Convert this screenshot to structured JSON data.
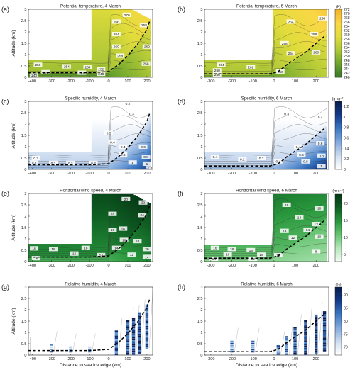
{
  "chart_data": [
    {
      "panel": "(a)",
      "title": "Potential temperature, 4 March",
      "type": "heatmap",
      "xlim": [
        -420,
        230
      ],
      "ylim": [
        0,
        3
      ],
      "x_ticks": [
        "-400",
        "-300",
        "-200",
        "-100",
        "0",
        "100",
        "200"
      ],
      "y_ticks": [
        "0",
        "0.5",
        "1",
        "1.5",
        "2",
        "2.5",
        "3"
      ],
      "ylabel": "Altitude (km)",
      "xlabel": "",
      "colormap": "yellow-green",
      "cbar_unit": "",
      "contour_labels": [
        {
          "x": 95,
          "y": 2.75,
          "text": "270"
        },
        {
          "x": 40,
          "y": 2.45,
          "text": "266"
        },
        {
          "x": 40,
          "y": 1.9,
          "text": "264"
        },
        {
          "x": 40,
          "y": 1.35,
          "text": "260"
        },
        {
          "x": 60,
          "y": 0.95,
          "text": "258"
        },
        {
          "x": 185,
          "y": 2.3,
          "text": "258"
        },
        {
          "x": 200,
          "y": 1.35,
          "text": "262"
        },
        {
          "x": 195,
          "y": 0.6,
          "text": "258"
        },
        {
          "x": -370,
          "y": 0.55,
          "text": "256"
        },
        {
          "x": -220,
          "y": 0.48,
          "text": "254"
        },
        {
          "x": -110,
          "y": 0.45,
          "text": "254"
        },
        {
          "x": -40,
          "y": 0.35,
          "text": "252"
        },
        {
          "x": -330,
          "y": 0.22,
          "text": "250"
        },
        {
          "x": -140,
          "y": 0.2,
          "text": "248"
        },
        {
          "x": -40,
          "y": 0.15,
          "text": "246"
        },
        {
          "x": -390,
          "y": 0.08,
          "text": "240"
        }
      ],
      "boundary_layer": {
        "x": [
          -420,
          -100,
          0,
          50,
          100,
          150,
          200,
          215
        ],
        "y": [
          0.2,
          0.2,
          0.25,
          0.55,
          0.95,
          1.45,
          2.1,
          2.5
        ]
      }
    },
    {
      "panel": "(b)",
      "title": "Potential temperature, 6 March",
      "type": "heatmap",
      "xlim": [
        -330,
        260
      ],
      "ylim": [
        0,
        3
      ],
      "x_ticks": [
        "-300",
        "-200",
        "-100",
        "0",
        "100",
        "200"
      ],
      "y_ticks": [
        "0",
        "0.5",
        "1",
        "1.5",
        "2",
        "2.5",
        "3"
      ],
      "ylabel": "",
      "xlabel": "",
      "colormap": "yellow-green",
      "cbar_unit": "(K)",
      "cbar_ticks": [
        "240",
        "242",
        "244",
        "246",
        "248",
        "250",
        "252",
        "254",
        "256",
        "258",
        "260",
        "262",
        "264",
        "266",
        "268",
        "270",
        "272"
      ],
      "cbar_range": [
        240,
        272
      ],
      "contour_labels": [
        {
          "x": 80,
          "y": 2.45,
          "text": "264"
        },
        {
          "x": 50,
          "y": 1.5,
          "text": "258"
        },
        {
          "x": 80,
          "y": 1.05,
          "text": "254"
        },
        {
          "x": 190,
          "y": 1.9,
          "text": "258"
        },
        {
          "x": 200,
          "y": 1.1,
          "text": "260"
        },
        {
          "x": 230,
          "y": 2.6,
          "text": "268"
        },
        {
          "x": -250,
          "y": 0.55,
          "text": "264"
        },
        {
          "x": -110,
          "y": 0.45,
          "text": "262"
        },
        {
          "x": -270,
          "y": 0.3,
          "text": "260"
        },
        {
          "x": -270,
          "y": 0.12,
          "text": "250"
        },
        {
          "x": 30,
          "y": 0.25,
          "text": "250"
        }
      ],
      "boundary_layer": {
        "x": [
          -330,
          -20,
          20,
          60,
          100,
          150,
          200,
          245
        ],
        "y": [
          0.15,
          0.15,
          0.25,
          0.55,
          0.8,
          1.1,
          1.5,
          1.85
        ]
      }
    },
    {
      "panel": "(c)",
      "title": "Specific humidity, 4 March",
      "type": "heatmap",
      "xlim": [
        -420,
        230
      ],
      "ylim": [
        0,
        3
      ],
      "x_ticks": [
        "-400",
        "-300",
        "-200",
        "-100",
        "0",
        "100",
        "200"
      ],
      "y_ticks": [
        "0",
        "0.5",
        "1",
        "1.5",
        "2",
        "2.5",
        "3"
      ],
      "ylabel": "Altitude (km)",
      "xlabel": "",
      "colormap": "blues",
      "cbar_unit": "",
      "contour_labels": [
        {
          "x": 100,
          "y": 2.9,
          "text": "0.2"
        },
        {
          "x": 120,
          "y": 2.45,
          "text": "0.3"
        },
        {
          "x": -380,
          "y": 0.5,
          "text": "0.2"
        },
        {
          "x": -390,
          "y": 0.3,
          "text": "0.2"
        },
        {
          "x": -290,
          "y": 0.28,
          "text": "0.3"
        },
        {
          "x": -200,
          "y": 0.28,
          "text": "0.2"
        },
        {
          "x": -80,
          "y": 0.28,
          "text": "0.2"
        },
        {
          "x": 0,
          "y": 1.6,
          "text": "0.5"
        },
        {
          "x": 20,
          "y": 1.2,
          "text": "0.4"
        },
        {
          "x": 75,
          "y": 1.0,
          "text": "0.4"
        },
        {
          "x": 75,
          "y": 0.65,
          "text": "0.6"
        },
        {
          "x": 180,
          "y": 1.0,
          "text": "0.6"
        },
        {
          "x": 195,
          "y": 0.55,
          "text": "0.8"
        },
        {
          "x": 200,
          "y": 0.25,
          "text": "1"
        },
        {
          "x": 125,
          "y": 0.3,
          "text": "1"
        },
        {
          "x": 215,
          "y": 0.05,
          "text": "1.2"
        }
      ],
      "boundary_layer": {
        "x": [
          -420,
          -100,
          0,
          50,
          100,
          150,
          200,
          215
        ],
        "y": [
          0.2,
          0.2,
          0.25,
          0.55,
          0.95,
          1.45,
          2.1,
          2.5
        ]
      }
    },
    {
      "panel": "(d)",
      "title": "Specific humidity, 6 March",
      "type": "heatmap",
      "xlim": [
        -330,
        260
      ],
      "ylim": [
        0,
        3
      ],
      "x_ticks": [
        "-300",
        "-200",
        "-100",
        "0",
        "100",
        "200"
      ],
      "y_ticks": [
        "0",
        "0.5",
        "1",
        "1.5",
        "2",
        "2.5",
        "3"
      ],
      "ylabel": "",
      "xlabel": "",
      "colormap": "blues",
      "cbar_unit": "(g kg⁻¹)",
      "cbar_ticks": [
        "0",
        "0.2",
        "0.4",
        "0.6",
        "0.8",
        "1",
        "1.2"
      ],
      "cbar_range": [
        0,
        1.3
      ],
      "contour_labels": [
        {
          "x": 60,
          "y": 2.45,
          "text": "0.3"
        },
        {
          "x": 220,
          "y": 2.3,
          "text": "0.4"
        },
        {
          "x": -280,
          "y": 0.55,
          "text": "0.4"
        },
        {
          "x": -150,
          "y": 0.45,
          "text": "0.2"
        },
        {
          "x": -60,
          "y": 0.5,
          "text": "0.2"
        },
        {
          "x": 20,
          "y": 0.35,
          "text": "0.4"
        },
        {
          "x": 115,
          "y": 1.0,
          "text": "0.4"
        },
        {
          "x": 130,
          "y": 0.65,
          "text": "0.6"
        },
        {
          "x": 220,
          "y": 1.15,
          "text": "0.6"
        },
        {
          "x": 150,
          "y": 0.35,
          "text": "0.8"
        },
        {
          "x": 225,
          "y": 0.6,
          "text": "0.8"
        },
        {
          "x": 225,
          "y": 0.15,
          "text": "1"
        }
      ],
      "boundary_layer": {
        "x": [
          -330,
          -20,
          20,
          60,
          100,
          150,
          200,
          245
        ],
        "y": [
          0.15,
          0.15,
          0.25,
          0.55,
          0.8,
          1.1,
          1.5,
          1.85
        ]
      }
    },
    {
      "panel": "(e)",
      "title": "Horizontal wind speed, 4 March",
      "type": "heatmap",
      "xlim": [
        -420,
        230
      ],
      "ylim": [
        0,
        3
      ],
      "x_ticks": [
        "-400",
        "-300",
        "-200",
        "-100",
        "0",
        "100",
        "200"
      ],
      "y_ticks": [
        "0",
        "0.5",
        "1",
        "1.5",
        "2",
        "2.5",
        "3"
      ],
      "ylabel": "Altitude (km)",
      "xlabel": "",
      "colormap": "greens",
      "cbar_unit": "",
      "contour_labels": [
        {
          "x": 90,
          "y": 2.75,
          "text": "20"
        },
        {
          "x": 180,
          "y": 2.6,
          "text": "22"
        },
        {
          "x": 175,
          "y": 2.05,
          "text": "24"
        },
        {
          "x": 20,
          "y": 2.1,
          "text": "18"
        },
        {
          "x": 20,
          "y": 1.4,
          "text": "18"
        },
        {
          "x": 75,
          "y": 1.45,
          "text": "16"
        },
        {
          "x": 80,
          "y": 0.95,
          "text": "16"
        },
        {
          "x": 150,
          "y": 0.9,
          "text": "18"
        },
        {
          "x": 40,
          "y": 0.6,
          "text": "14"
        },
        {
          "x": 200,
          "y": 0.55,
          "text": "20"
        },
        {
          "x": -390,
          "y": 0.58,
          "text": "16"
        },
        {
          "x": -290,
          "y": 0.55,
          "text": "18"
        },
        {
          "x": -120,
          "y": 0.6,
          "text": "18"
        },
        {
          "x": -180,
          "y": 0.35,
          "text": "16"
        },
        {
          "x": -380,
          "y": 0.15,
          "text": "16"
        },
        {
          "x": -40,
          "y": 0.28,
          "text": "14"
        },
        {
          "x": 120,
          "y": 0.3,
          "text": "12"
        },
        {
          "x": 200,
          "y": 0.2,
          "text": "14"
        }
      ],
      "boundary_layer": {
        "x": [
          -420,
          -100,
          0,
          50,
          100,
          150,
          200,
          215
        ],
        "y": [
          0.2,
          0.2,
          0.25,
          0.55,
          0.95,
          1.45,
          2.1,
          2.5
        ]
      }
    },
    {
      "panel": "(f)",
      "title": "Horizontal wind speed, 6 March",
      "type": "heatmap",
      "xlim": [
        -330,
        260
      ],
      "ylim": [
        0,
        3
      ],
      "x_ticks": [
        "-300",
        "-200",
        "-100",
        "0",
        "100",
        "200"
      ],
      "y_ticks": [
        "0",
        "0.5",
        "1",
        "1.5",
        "2",
        "2.5",
        "3"
      ],
      "ylabel": "",
      "xlabel": "",
      "colormap": "greens",
      "cbar_unit": "(m s⁻¹)",
      "cbar_ticks": [
        "5",
        "10",
        "15",
        "20"
      ],
      "cbar_range": [
        3,
        23
      ],
      "contour_labels": [
        {
          "x": 60,
          "y": 2.5,
          "text": "16"
        },
        {
          "x": 120,
          "y": 1.95,
          "text": "14"
        },
        {
          "x": 50,
          "y": 1.35,
          "text": "14"
        },
        {
          "x": 90,
          "y": 1.05,
          "text": "12"
        },
        {
          "x": 215,
          "y": 2.35,
          "text": "10"
        },
        {
          "x": 200,
          "y": 1.65,
          "text": "12"
        },
        {
          "x": 160,
          "y": 1.4,
          "text": "14"
        },
        {
          "x": 215,
          "y": 1.1,
          "text": "10"
        },
        {
          "x": 200,
          "y": 0.45,
          "text": "8"
        },
        {
          "x": -280,
          "y": 0.6,
          "text": "16"
        },
        {
          "x": -200,
          "y": 0.55,
          "text": "18"
        },
        {
          "x": -110,
          "y": 0.5,
          "text": "18"
        },
        {
          "x": -220,
          "y": 0.32,
          "text": "16"
        },
        {
          "x": -60,
          "y": 0.3,
          "text": "18"
        },
        {
          "x": -285,
          "y": 0.12,
          "text": "14"
        },
        {
          "x": -100,
          "y": 0.12,
          "text": "12"
        },
        {
          "x": 20,
          "y": 0.28,
          "text": "12"
        }
      ],
      "boundary_layer": {
        "x": [
          -330,
          -20,
          20,
          60,
          100,
          150,
          200,
          245
        ],
        "y": [
          0.15,
          0.15,
          0.25,
          0.55,
          0.8,
          1.1,
          1.5,
          1.85
        ]
      }
    },
    {
      "panel": "(g)",
      "title": "Relative humidity, 4 March",
      "type": "scatter",
      "xlim": [
        -420,
        230
      ],
      "ylim": [
        0,
        3
      ],
      "x_ticks": [
        "-400",
        "-300",
        "-200",
        "-100",
        "0",
        "100",
        "200"
      ],
      "y_ticks": [
        "0",
        "0.5",
        "1",
        "1.5",
        "2",
        "2.5",
        "3"
      ],
      "ylabel": "Altitude (km)",
      "xlabel": "Distance to sea ice edge (km)",
      "colormap": "blues",
      "cbar_unit": "",
      "profiles": [
        {
          "x": -300,
          "ymin": 0.15,
          "ymax": 0.45,
          "rh": 0.45
        },
        {
          "x": -200,
          "ymin": 0.15,
          "ymax": 0.35,
          "rh": 0.3
        },
        {
          "x": -100,
          "ymin": 0.15,
          "ymax": 0.35,
          "rh": 0.35
        },
        {
          "x": 40,
          "ymin": 0.0,
          "ymax": 1.05,
          "rh": 0.7
        },
        {
          "x": 100,
          "ymin": 0.0,
          "ymax": 1.5,
          "rh": 0.75
        },
        {
          "x": 130,
          "ymin": 0.0,
          "ymax": 1.6,
          "rh": 0.8
        },
        {
          "x": 160,
          "ymin": 0.1,
          "ymax": 1.85,
          "rh": 0.82
        },
        {
          "x": 200,
          "ymin": 0.3,
          "ymax": 2.2,
          "rh": 0.7
        }
      ],
      "boundary_layer": {
        "x": [
          -420,
          -100,
          0,
          50,
          100,
          150,
          200,
          215
        ],
        "y": [
          0.2,
          0.2,
          0.25,
          0.55,
          0.95,
          1.45,
          2.1,
          2.5
        ]
      }
    },
    {
      "panel": "(h)",
      "title": "Relative humidity, 6 March",
      "type": "scatter",
      "xlim": [
        -330,
        260
      ],
      "ylim": [
        0,
        3
      ],
      "x_ticks": [
        "-300",
        "-200",
        "-100",
        "0",
        "100",
        "200"
      ],
      "y_ticks": [
        "0",
        "0.5",
        "1",
        "1.5",
        "2",
        "2.5",
        "3"
      ],
      "ylabel": "",
      "xlabel": "Distance to sea ice edge (km)",
      "colormap": "blues",
      "cbar_unit": "(%)",
      "cbar_ticks": [
        "70",
        "75",
        "80",
        "85",
        "90"
      ],
      "cbar_range": [
        67,
        93
      ],
      "profiles": [
        {
          "x": -200,
          "ymin": 0.15,
          "ymax": 0.6,
          "rh": 0.5
        },
        {
          "x": -100,
          "ymin": 0.15,
          "ymax": 0.6,
          "rh": 0.55
        },
        {
          "x": 20,
          "ymin": 0.05,
          "ymax": 0.4,
          "rh": 0.5
        },
        {
          "x": 60,
          "ymin": 0.0,
          "ymax": 0.8,
          "rh": 0.6
        },
        {
          "x": 100,
          "ymin": 0.0,
          "ymax": 1.2,
          "rh": 0.75
        },
        {
          "x": 150,
          "ymin": 0.0,
          "ymax": 1.5,
          "rh": 0.85
        },
        {
          "x": 200,
          "ymin": 0.1,
          "ymax": 1.75,
          "rh": 0.9
        },
        {
          "x": 240,
          "ymin": 0.2,
          "ymax": 1.9,
          "rh": 0.85
        }
      ],
      "boundary_layer": {
        "x": [
          -330,
          -20,
          20,
          60,
          100,
          150,
          200,
          245
        ],
        "y": [
          0.15,
          0.15,
          0.25,
          0.55,
          0.8,
          1.1,
          1.5,
          1.85
        ]
      }
    }
  ]
}
